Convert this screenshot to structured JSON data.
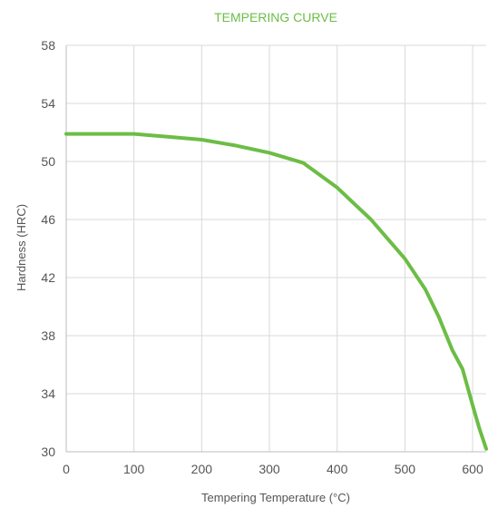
{
  "chart_data": {
    "type": "line",
    "title": "TEMPERING CURVE",
    "xlabel": "Tempering Temperature (°C)",
    "ylabel": "Hardness (HRC)",
    "xlim": [
      0,
      620
    ],
    "ylim": [
      30,
      58
    ],
    "x_ticks": [
      0,
      100,
      200,
      300,
      400,
      500,
      600
    ],
    "y_ticks": [
      30,
      34,
      38,
      42,
      46,
      50,
      54,
      58
    ],
    "grid": true,
    "legend": "none",
    "series": [
      {
        "color": "#6cbd45",
        "points": [
          [
            0,
            51.9
          ],
          [
            50,
            51.9
          ],
          [
            100,
            51.9
          ],
          [
            150,
            51.7
          ],
          [
            200,
            51.5
          ],
          [
            250,
            51.1
          ],
          [
            300,
            50.6
          ],
          [
            350,
            49.9
          ],
          [
            400,
            48.2
          ],
          [
            450,
            46.0
          ],
          [
            500,
            43.3
          ],
          [
            530,
            41.2
          ],
          [
            550,
            39.3
          ],
          [
            570,
            37.0
          ],
          [
            585,
            35.7
          ],
          [
            600,
            33.2
          ],
          [
            610,
            31.6
          ],
          [
            620,
            30.2
          ]
        ]
      }
    ]
  }
}
